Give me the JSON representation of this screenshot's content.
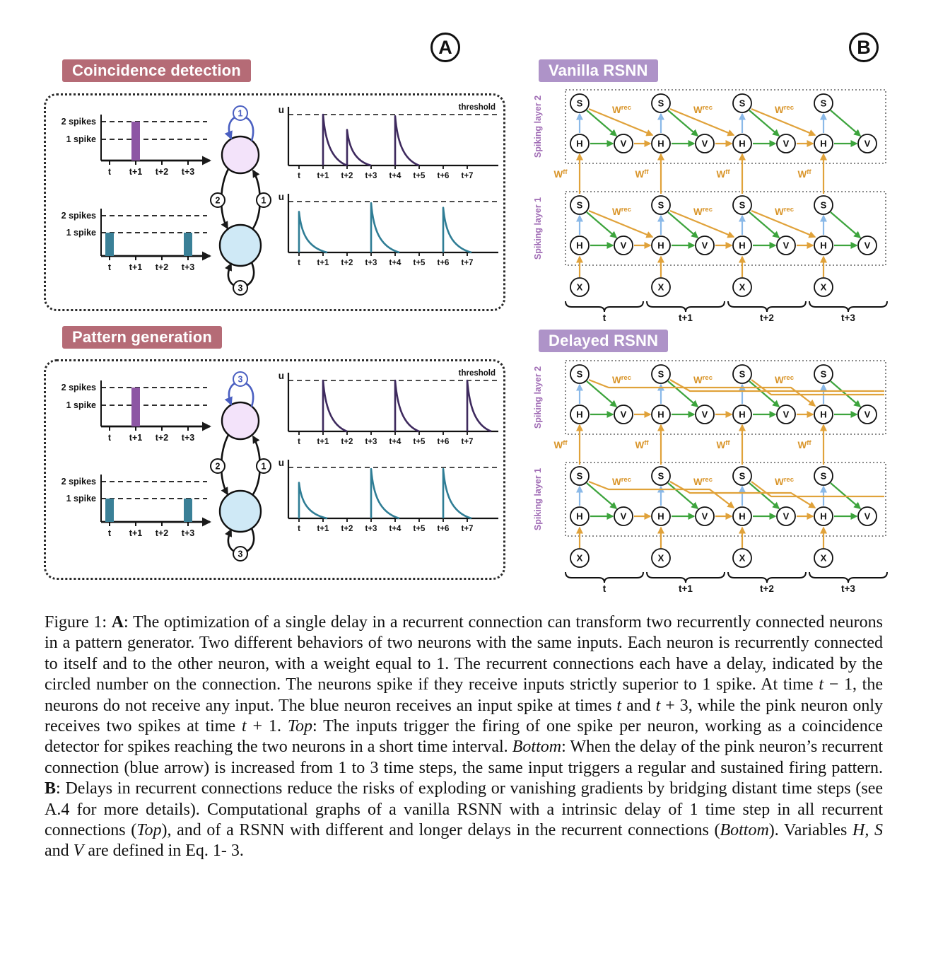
{
  "panel_labels": {
    "a": "A",
    "b": "B"
  },
  "colors": {
    "ink": "#1a1a1a",
    "badge_a_bg": "#b56b76",
    "badge_b_bg": "#ae93c8",
    "neuron_pink": "#f3e3fa",
    "neuron_blue": "#cfe9f6",
    "loop_blue": "#4a5fc1",
    "purple_curve": "#3e2a5e",
    "purple_bar": "#8d56a4",
    "teal_curve": "#2f7d95",
    "teal_bar": "#3a8097",
    "orange": "#e0a23a",
    "weight_label": "#d9952a",
    "green": "#3da43d",
    "lightblue": "#8ab9e8",
    "layer_label": "#a06cb5"
  },
  "panel_a": {
    "sections": [
      {
        "title": "Coincidence detection",
        "rasters": [
          {
            "name": "pink-input",
            "y_labels": [
              "2 spikes",
              "1 spike"
            ],
            "x_ticks": [
              "t",
              "t+1",
              "t+2",
              "t+3"
            ],
            "bars": [
              {
                "t": 1,
                "spikes": 2,
                "color": "#8d56a4"
              }
            ]
          },
          {
            "name": "blue-input",
            "y_labels": [
              "2 spikes",
              "1 spike"
            ],
            "x_ticks": [
              "t",
              "t+1",
              "t+2",
              "t+3"
            ],
            "bars": [
              {
                "t": 0,
                "spikes": 1,
                "color": "#3a8097"
              },
              {
                "t": 3,
                "spikes": 1,
                "color": "#3a8097"
              }
            ]
          }
        ],
        "neuron": {
          "top_delay": "1",
          "left_delay": "2",
          "right_delay": "1",
          "bottom_delay": "3"
        },
        "u_plots": [
          {
            "axis_label": "u",
            "threshold_label": "threshold",
            "color": "#3e2a5e",
            "x_ticks": [
              "t",
              "t+1",
              "t+2",
              "t+3",
              "t+4",
              "t+5",
              "t+6",
              "t+7"
            ],
            "spikes": [
              {
                "t": 1,
                "amp": 1.0
              },
              {
                "t": 2,
                "amp": 0.7
              },
              {
                "t": 4,
                "amp": 0.97
              }
            ]
          },
          {
            "axis_label": "u",
            "color": "#2f7d95",
            "x_ticks": [
              "t",
              "t+1",
              "t+2",
              "t+3",
              "t+4",
              "t+5",
              "t+6",
              "t+7"
            ],
            "spikes": [
              {
                "t": 0,
                "amp": 0.8
              },
              {
                "t": 3,
                "amp": 0.97
              },
              {
                "t": 6,
                "amp": 0.88
              }
            ]
          }
        ]
      },
      {
        "title": "Pattern generation",
        "rasters": [
          {
            "name": "pink-input",
            "y_labels": [
              "2 spikes",
              "1 spike"
            ],
            "x_ticks": [
              "t",
              "t+1",
              "t+2",
              "t+3"
            ],
            "bars": [
              {
                "t": 1,
                "spikes": 2,
                "color": "#8d56a4"
              }
            ]
          },
          {
            "name": "blue-input",
            "y_labels": [
              "2 spikes",
              "1 spike"
            ],
            "x_ticks": [
              "t",
              "t+1",
              "t+2",
              "t+3"
            ],
            "bars": [
              {
                "t": 0,
                "spikes": 1,
                "color": "#3a8097"
              },
              {
                "t": 3,
                "spikes": 1,
                "color": "#3a8097"
              }
            ]
          }
        ],
        "neuron": {
          "top_delay": "3",
          "left_delay": "2",
          "right_delay": "1",
          "bottom_delay": "3"
        },
        "u_plots": [
          {
            "axis_label": "u",
            "threshold_label": "threshold",
            "color": "#3e2a5e",
            "x_ticks": [
              "t",
              "t+1",
              "t+2",
              "t+3",
              "t+4",
              "t+5",
              "t+6",
              "t+7"
            ],
            "spikes": [
              {
                "t": 1,
                "amp": 1.0
              },
              {
                "t": 4,
                "amp": 1.0
              },
              {
                "t": 7,
                "amp": 1.0
              }
            ]
          },
          {
            "axis_label": "u",
            "color": "#2f7d95",
            "x_ticks": [
              "t",
              "t+1",
              "t+2",
              "t+3",
              "t+4",
              "t+5",
              "t+6",
              "t+7"
            ],
            "spikes": [
              {
                "t": 0,
                "amp": 0.7
              },
              {
                "t": 3,
                "amp": 0.97
              },
              {
                "t": 6,
                "amp": 0.97
              }
            ]
          }
        ]
      }
    ]
  },
  "panel_b": {
    "layer_labels": [
      "Spiking layer 2",
      "Spiking layer 1"
    ],
    "node_labels": {
      "s": "S",
      "h": "H",
      "v": "V",
      "x": "X"
    },
    "wrec": {
      "base": "W",
      "sup": "rec"
    },
    "wff": {
      "base": "W",
      "sup": "ff"
    },
    "time_labels": [
      "t",
      "t+1",
      "t+2",
      "t+3"
    ],
    "graphs": [
      {
        "title": "Vanilla RSNN",
        "recurrent": {
          "layer2": "adjacent",
          "layer1": "adjacent"
        }
      },
      {
        "title": "Delayed RSNN",
        "recurrent": {
          "layer2": [
            {
              "from": 0,
              "to": 3
            },
            {
              "from": 1,
              "to": null
            },
            {
              "from": 2,
              "to": null
            }
          ],
          "layer1": [
            {
              "from": 0,
              "to": 2
            },
            {
              "from": 1,
              "to": 3
            },
            {
              "from": 2,
              "to": null
            }
          ]
        }
      }
    ]
  },
  "caption": {
    "segments": [
      {
        "s": "n",
        "t": "Figure 1: "
      },
      {
        "s": "b",
        "t": "A"
      },
      {
        "s": "n",
        "t": ": The optimization of a single delay in a recurrent connection can transform two recurrently connected neurons in a pattern generator. Two different behaviors of two neurons with the same inputs. Each neuron is recurrently connected to itself and to the other neuron, with a weight equal to 1. The recurrent connections each have a delay, indicated by the circled number on the connection. The neurons spike if they receive inputs strictly superior to 1 spike. At time "
      },
      {
        "s": "i",
        "t": "t"
      },
      {
        "s": "n",
        "t": " − 1, the neurons do not receive any input. The blue neuron receives an input spike at times "
      },
      {
        "s": "i",
        "t": "t"
      },
      {
        "s": "n",
        "t": " and "
      },
      {
        "s": "i",
        "t": "t"
      },
      {
        "s": "n",
        "t": " + 3, while the pink neuron only receives two spikes at time "
      },
      {
        "s": "i",
        "t": "t"
      },
      {
        "s": "n",
        "t": " + 1. "
      },
      {
        "s": "i",
        "t": "Top"
      },
      {
        "s": "n",
        "t": ": The inputs trigger the firing of one spike per neuron, working as a coincidence detector for spikes reaching the two neurons in a short time interval. "
      },
      {
        "s": "i",
        "t": "Bottom"
      },
      {
        "s": "n",
        "t": ": When the delay of the pink neuron’s recurrent connection (blue arrow) is increased from 1 to 3 time steps, the same input triggers a regular and sustained firing pattern. "
      },
      {
        "s": "b",
        "t": "B"
      },
      {
        "s": "n",
        "t": ": Delays in recurrent connections reduce the risks of exploding or vanishing gradients by bridging distant time steps (see A.4 for more details). Computational graphs of a vanilla RSNN with a intrinsic delay of 1 time step in all recurrent connections ("
      },
      {
        "s": "i",
        "t": "Top"
      },
      {
        "s": "n",
        "t": "), and of a RSNN with different and longer delays in the recurrent connections ("
      },
      {
        "s": "i",
        "t": "Bottom"
      },
      {
        "s": "n",
        "t": "). Variables "
      },
      {
        "s": "i",
        "t": "H, S"
      },
      {
        "s": "n",
        "t": " and "
      },
      {
        "s": "i",
        "t": "V"
      },
      {
        "s": "n",
        "t": " are defined in Eq. 1- 3."
      }
    ]
  }
}
